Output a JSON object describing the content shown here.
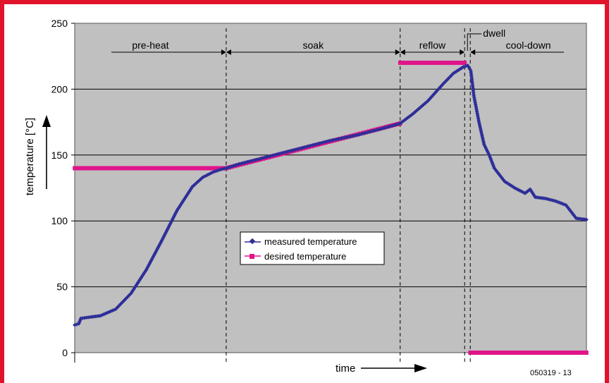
{
  "chart_data": {
    "type": "line",
    "title": "",
    "xlabel": "time",
    "ylabel": "temperature [°C]",
    "ylim": [
      0,
      250
    ],
    "yticks": [
      0,
      50,
      100,
      150,
      200,
      250
    ],
    "xlim": [
      0,
      100
    ],
    "grid": "horizontal",
    "plot_background": "#c0c0c0",
    "legend_position": "center",
    "figure_id": "050319 - 13",
    "phases": [
      {
        "label": "pre-heat",
        "start": 0,
        "end": 29.6
      },
      {
        "label": "soak",
        "start": 29.6,
        "end": 63.6
      },
      {
        "label": "reflow",
        "start": 63.6,
        "end": 76.2
      },
      {
        "label": "dwell",
        "start": 76.2,
        "end": 77.3
      },
      {
        "label": "cool-down",
        "start": 77.3,
        "end": 100
      }
    ],
    "series": [
      {
        "name": "measured temperature",
        "color": "#2e2e99",
        "marker": "diamond",
        "x": [
          0,
          0.8,
          1.2,
          3,
          5,
          8,
          11,
          14,
          17,
          20,
          23,
          25,
          27,
          28.5,
          29.6,
          32,
          35,
          40,
          45,
          50,
          55,
          60,
          63.6,
          66,
          69,
          72,
          74,
          76,
          76.8,
          77.4,
          78,
          79,
          80,
          81,
          82,
          84,
          86,
          88,
          89,
          90,
          92,
          94,
          96,
          98,
          100
        ],
        "y": [
          21,
          22,
          26,
          27,
          28,
          33,
          45,
          63,
          85,
          108,
          126,
          133,
          137,
          139,
          140,
          143,
          146,
          151,
          156,
          161,
          165,
          170,
          174,
          181,
          191,
          204,
          212,
          217,
          218,
          214,
          195,
          175,
          158,
          150,
          140,
          130,
          125,
          121,
          124,
          118,
          117,
          115,
          112,
          102,
          101
        ]
      },
      {
        "name": "desired temperature",
        "color": "#e0148a",
        "marker": "square",
        "segments": [
          {
            "x": [
              0,
              29.6
            ],
            "y": [
              140,
              140
            ]
          },
          {
            "x": [
              29.6,
              63.6
            ],
            "y": [
              140,
              174
            ]
          },
          {
            "x": [
              63.6,
              76.2
            ],
            "y": [
              220,
              220
            ]
          },
          {
            "x": [
              77.3,
              100
            ],
            "y": [
              0,
              0
            ]
          }
        ]
      }
    ]
  }
}
